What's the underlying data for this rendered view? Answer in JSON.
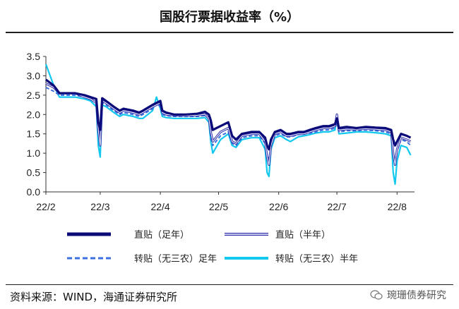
{
  "title": "国股行票据收益率（%）",
  "source": "资料来源：WIND，海通证券研究所",
  "watermark": "琬珊债券研究",
  "watermark_icon": "wechat-icon",
  "chart_data": {
    "type": "line",
    "title": "国股行票据收益率（%）",
    "ylim": [
      0,
      3.5
    ],
    "yticks": [
      "0.0",
      "0.5",
      "1.0",
      "1.5",
      "2.0",
      "2.5",
      "3.0",
      "3.5"
    ],
    "xlim": [
      0,
      190
    ],
    "xticks": [
      {
        "label": "22/2",
        "x": 0
      },
      {
        "label": "22/3",
        "x": 28
      },
      {
        "label": "22/4",
        "x": 59
      },
      {
        "label": "22/5",
        "x": 89
      },
      {
        "label": "22/6",
        "x": 120
      },
      {
        "label": "22/7",
        "x": 150
      },
      {
        "label": "22/8",
        "x": 181
      }
    ],
    "grid": false,
    "legend_position": "bottom",
    "series": [
      {
        "name": "直贴（足年）",
        "color": "#0b0b7a",
        "style": "solid-thick",
        "points": [
          [
            0,
            2.9
          ],
          [
            4,
            2.75
          ],
          [
            7,
            2.55
          ],
          [
            15,
            2.55
          ],
          [
            20,
            2.5
          ],
          [
            23,
            2.45
          ],
          [
            26,
            2.4
          ],
          [
            27,
            1.8
          ],
          [
            28,
            1.6
          ],
          [
            29,
            2.42
          ],
          [
            31,
            2.35
          ],
          [
            35,
            2.2
          ],
          [
            38,
            2.1
          ],
          [
            40,
            2.15
          ],
          [
            45,
            2.1
          ],
          [
            48,
            2.05
          ],
          [
            50,
            2.1
          ],
          [
            55,
            2.25
          ],
          [
            57,
            2.3
          ],
          [
            59,
            2.35
          ],
          [
            60,
            2.1
          ],
          [
            62,
            2.05
          ],
          [
            66,
            2.0
          ],
          [
            72,
            2.0
          ],
          [
            78,
            2.02
          ],
          [
            82,
            2.07
          ],
          [
            84,
            2.0
          ],
          [
            85,
            1.85
          ],
          [
            86,
            1.6
          ],
          [
            90,
            1.7
          ],
          [
            94,
            1.8
          ],
          [
            96,
            1.45
          ],
          [
            98,
            1.35
          ],
          [
            101,
            1.5
          ],
          [
            106,
            1.55
          ],
          [
            110,
            1.55
          ],
          [
            113,
            1.4
          ],
          [
            114,
            1.2
          ],
          [
            115,
            1.1
          ],
          [
            116,
            1.35
          ],
          [
            118,
            1.55
          ],
          [
            121,
            1.6
          ],
          [
            124,
            1.5
          ],
          [
            126,
            1.5
          ],
          [
            130,
            1.55
          ],
          [
            133,
            1.55
          ],
          [
            136,
            1.6
          ],
          [
            139,
            1.65
          ],
          [
            143,
            1.7
          ],
          [
            146,
            1.7
          ],
          [
            149,
            1.75
          ],
          [
            150,
            1.9
          ],
          [
            151,
            1.65
          ],
          [
            155,
            1.68
          ],
          [
            160,
            1.65
          ],
          [
            165,
            1.68
          ],
          [
            170,
            1.66
          ],
          [
            175,
            1.65
          ],
          [
            178,
            1.6
          ],
          [
            179,
            1.35
          ],
          [
            180,
            1.2
          ],
          [
            181,
            1.3
          ],
          [
            183,
            1.5
          ],
          [
            186,
            1.45
          ],
          [
            188,
            1.4
          ]
        ]
      },
      {
        "name": "直贴（半年）",
        "color": "#2a2aa8",
        "style": "double",
        "points": [
          [
            0,
            2.8
          ],
          [
            4,
            2.7
          ],
          [
            7,
            2.55
          ],
          [
            15,
            2.55
          ],
          [
            20,
            2.45
          ],
          [
            23,
            2.4
          ],
          [
            26,
            2.3
          ],
          [
            27,
            1.6
          ],
          [
            28,
            1.2
          ],
          [
            29,
            2.35
          ],
          [
            31,
            2.3
          ],
          [
            35,
            2.15
          ],
          [
            38,
            2.05
          ],
          [
            40,
            2.1
          ],
          [
            45,
            2.05
          ],
          [
            48,
            2.0
          ],
          [
            50,
            2.05
          ],
          [
            55,
            2.2
          ],
          [
            57,
            2.25
          ],
          [
            59,
            2.3
          ],
          [
            60,
            2.05
          ],
          [
            62,
            2.0
          ],
          [
            66,
            1.98
          ],
          [
            72,
            1.97
          ],
          [
            78,
            1.98
          ],
          [
            82,
            2.0
          ],
          [
            84,
            1.9
          ],
          [
            85,
            1.55
          ],
          [
            86,
            1.3
          ],
          [
            90,
            1.55
          ],
          [
            94,
            1.65
          ],
          [
            96,
            1.3
          ],
          [
            98,
            1.25
          ],
          [
            101,
            1.45
          ],
          [
            106,
            1.5
          ],
          [
            110,
            1.5
          ],
          [
            113,
            1.3
          ],
          [
            114,
            0.9
          ],
          [
            115,
            0.7
          ],
          [
            116,
            1.2
          ],
          [
            118,
            1.5
          ],
          [
            121,
            1.55
          ],
          [
            124,
            1.45
          ],
          [
            126,
            1.45
          ],
          [
            130,
            1.5
          ],
          [
            133,
            1.5
          ],
          [
            136,
            1.55
          ],
          [
            139,
            1.6
          ],
          [
            143,
            1.65
          ],
          [
            146,
            1.65
          ],
          [
            149,
            1.7
          ],
          [
            150,
            2.0
          ],
          [
            151,
            1.6
          ],
          [
            155,
            1.62
          ],
          [
            160,
            1.62
          ],
          [
            165,
            1.63
          ],
          [
            170,
            1.62
          ],
          [
            175,
            1.6
          ],
          [
            178,
            1.55
          ],
          [
            179,
            1.0
          ],
          [
            180,
            0.7
          ],
          [
            181,
            1.1
          ],
          [
            183,
            1.4
          ],
          [
            186,
            1.35
          ],
          [
            188,
            1.3
          ]
        ]
      },
      {
        "name": "转贴（无三农）足年",
        "color": "#3b6fe0",
        "style": "dashed",
        "points": [
          [
            0,
            2.7
          ],
          [
            4,
            2.6
          ],
          [
            7,
            2.5
          ],
          [
            15,
            2.5
          ],
          [
            20,
            2.45
          ],
          [
            23,
            2.4
          ],
          [
            26,
            2.3
          ],
          [
            27,
            1.7
          ],
          [
            28,
            1.45
          ],
          [
            29,
            2.3
          ],
          [
            31,
            2.25
          ],
          [
            35,
            2.1
          ],
          [
            38,
            2.0
          ],
          [
            40,
            2.05
          ],
          [
            45,
            2.0
          ],
          [
            48,
            1.95
          ],
          [
            50,
            2.0
          ],
          [
            55,
            2.15
          ],
          [
            57,
            2.3
          ],
          [
            59,
            2.2
          ],
          [
            60,
            2.0
          ],
          [
            62,
            1.97
          ],
          [
            66,
            1.95
          ],
          [
            72,
            1.95
          ],
          [
            78,
            1.95
          ],
          [
            82,
            1.97
          ],
          [
            84,
            1.9
          ],
          [
            85,
            1.4
          ],
          [
            86,
            1.2
          ],
          [
            90,
            1.45
          ],
          [
            94,
            1.55
          ],
          [
            96,
            1.25
          ],
          [
            98,
            1.2
          ],
          [
            101,
            1.4
          ],
          [
            106,
            1.45
          ],
          [
            110,
            1.45
          ],
          [
            113,
            1.25
          ],
          [
            114,
            0.95
          ],
          [
            115,
            0.85
          ],
          [
            116,
            1.2
          ],
          [
            118,
            1.45
          ],
          [
            121,
            1.5
          ],
          [
            124,
            1.42
          ],
          [
            126,
            1.42
          ],
          [
            130,
            1.48
          ],
          [
            133,
            1.5
          ],
          [
            136,
            1.52
          ],
          [
            139,
            1.55
          ],
          [
            143,
            1.6
          ],
          [
            146,
            1.6
          ],
          [
            149,
            1.65
          ],
          [
            150,
            1.8
          ],
          [
            151,
            1.55
          ],
          [
            155,
            1.58
          ],
          [
            160,
            1.58
          ],
          [
            165,
            1.6
          ],
          [
            170,
            1.58
          ],
          [
            175,
            1.55
          ],
          [
            178,
            1.5
          ],
          [
            179,
            0.95
          ],
          [
            180,
            0.8
          ],
          [
            181,
            1.05
          ],
          [
            183,
            1.35
          ],
          [
            186,
            1.3
          ],
          [
            188,
            1.2
          ]
        ]
      },
      {
        "name": "转贴（无三农）半年",
        "color": "#12c8ef",
        "style": "solid",
        "points": [
          [
            0,
            3.3
          ],
          [
            4,
            2.75
          ],
          [
            7,
            2.45
          ],
          [
            15,
            2.45
          ],
          [
            20,
            2.4
          ],
          [
            23,
            2.35
          ],
          [
            26,
            2.2
          ],
          [
            27,
            1.2
          ],
          [
            28,
            0.9
          ],
          [
            29,
            2.25
          ],
          [
            31,
            2.2
          ],
          [
            35,
            2.05
          ],
          [
            38,
            1.95
          ],
          [
            40,
            2.0
          ],
          [
            45,
            1.95
          ],
          [
            48,
            1.9
          ],
          [
            50,
            1.9
          ],
          [
            55,
            2.1
          ],
          [
            57,
            2.45
          ],
          [
            59,
            2.15
          ],
          [
            60,
            1.95
          ],
          [
            62,
            1.92
          ],
          [
            66,
            1.9
          ],
          [
            72,
            1.9
          ],
          [
            78,
            1.9
          ],
          [
            82,
            1.92
          ],
          [
            84,
            1.8
          ],
          [
            85,
            1.3
          ],
          [
            86,
            1.0
          ],
          [
            90,
            1.35
          ],
          [
            94,
            1.5
          ],
          [
            96,
            1.2
          ],
          [
            98,
            1.15
          ],
          [
            101,
            1.35
          ],
          [
            106,
            1.4
          ],
          [
            110,
            1.4
          ],
          [
            113,
            1.1
          ],
          [
            114,
            0.5
          ],
          [
            115,
            0.4
          ],
          [
            116,
            1.1
          ],
          [
            118,
            1.4
          ],
          [
            121,
            1.45
          ],
          [
            124,
            1.35
          ],
          [
            126,
            1.3
          ],
          [
            130,
            1.42
          ],
          [
            133,
            1.45
          ],
          [
            136,
            1.48
          ],
          [
            139,
            1.52
          ],
          [
            143,
            1.55
          ],
          [
            146,
            1.55
          ],
          [
            149,
            1.6
          ],
          [
            150,
            2.0
          ],
          [
            151,
            1.5
          ],
          [
            155,
            1.52
          ],
          [
            160,
            1.55
          ],
          [
            165,
            1.55
          ],
          [
            170,
            1.53
          ],
          [
            175,
            1.5
          ],
          [
            178,
            1.45
          ],
          [
            179,
            0.5
          ],
          [
            180,
            0.2
          ],
          [
            181,
            0.8
          ],
          [
            183,
            1.2
          ],
          [
            186,
            1.15
          ],
          [
            188,
            0.95
          ]
        ]
      }
    ]
  }
}
